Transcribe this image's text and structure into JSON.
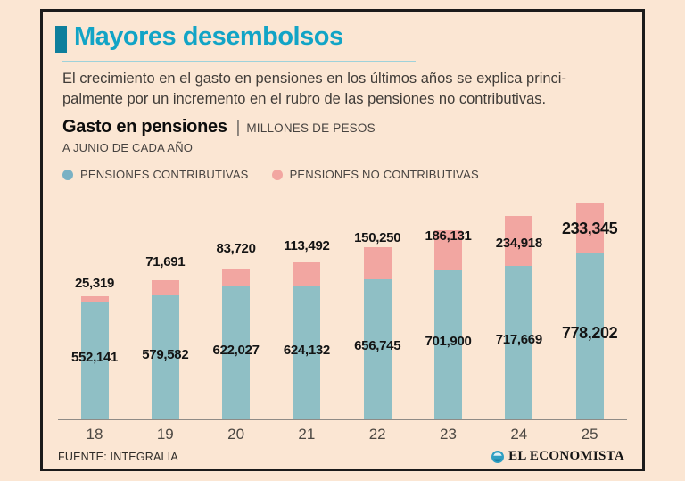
{
  "header": {
    "title": "Mayores desembolsos",
    "description_line1": "El crecimiento en el gasto en pensiones en los últimos años se explica princi-",
    "description_line2": "palmente por un incremento en el rubro de las pensiones no contributivas."
  },
  "chart_header": {
    "title": "Gasto en pensiones",
    "separator": "|",
    "units": "MILLONES DE PESOS",
    "subtitle": "A JUNIO DE CADA AÑO"
  },
  "legend": [
    {
      "label": "PENSIONES CONTRIBUTIVAS",
      "color": "#79b1c4"
    },
    {
      "label": "PENSIONES NO CONTRIBUTIVAS",
      "color": "#f2a6a1"
    }
  ],
  "chart_data": {
    "type": "bar",
    "stacked": true,
    "title": "Gasto en pensiones",
    "units": "MILLONES DE PESOS",
    "note": "A JUNIO DE CADA AÑO",
    "categories": [
      "18",
      "19",
      "20",
      "21",
      "22",
      "23",
      "24",
      "25"
    ],
    "series": [
      {
        "name": "PENSIONES CONTRIBUTIVAS",
        "color": "#8fbfc5",
        "values": [
          552141,
          579582,
          622027,
          624132,
          656745,
          701900,
          717669,
          778202
        ]
      },
      {
        "name": "PENSIONES NO CONTRIBUTIVAS",
        "color": "#f2a6a1",
        "values": [
          25319,
          71691,
          83720,
          113492,
          150250,
          186131,
          234918,
          233345
        ]
      }
    ],
    "highlight_last_category": true,
    "grid": false,
    "legend_position": "top",
    "xlabel": "",
    "ylabel": ""
  },
  "footer": {
    "source": "FUENTE: INTEGRALIA",
    "brand": "EL ECONOMISTA"
  },
  "colors": {
    "background": "#fbe6d3",
    "card_border": "#1b1b1b",
    "title_accent": "#12a4c6",
    "title_marker": "#0e7f9c",
    "bar_teal": "#8fbfc5",
    "bar_pink": "#f2a6a1",
    "axis": "#8f8b86"
  }
}
